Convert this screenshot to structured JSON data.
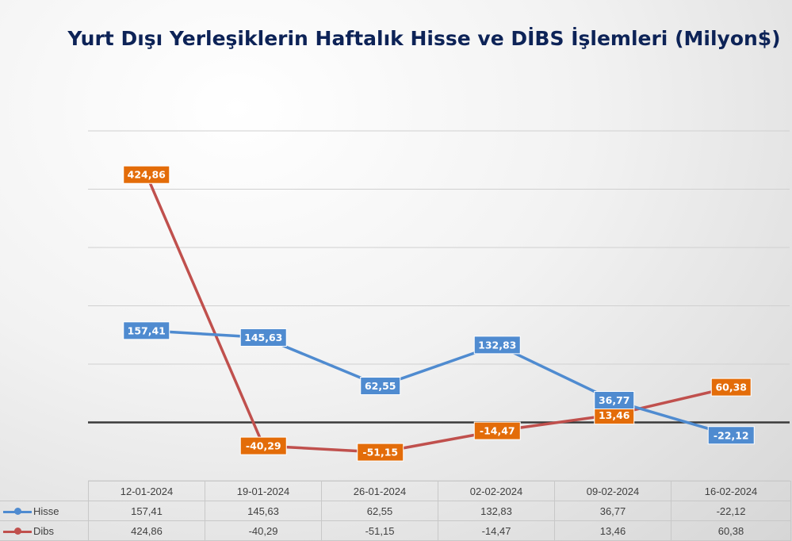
{
  "title": "Yurt Dışı Yerleşiklerin Haftalık Hisse ve DİBS İşlemleri (Milyon$)",
  "chart_data": {
    "type": "line",
    "title": "Yurt Dışı Yerleşiklerin Haftalık Hisse ve DİBS İşlemleri (Milyon$)",
    "categories": [
      "12-01-2024",
      "19-01-2024",
      "26-01-2024",
      "02-02-2024",
      "09-02-2024",
      "16-02-2024"
    ],
    "ylim": [
      -100,
      500
    ],
    "grid": true,
    "legend": "data-table",
    "series": [
      {
        "name": "Hisse",
        "color": "#4f8bd0",
        "values": [
          157.41,
          145.63,
          62.55,
          132.83,
          36.77,
          -22.12
        ],
        "labels": [
          "157,41",
          "145,63",
          "62,55",
          "132,83",
          "36,77",
          "-22,12"
        ]
      },
      {
        "name": "Dibs",
        "color": "#c0504d",
        "label_color": "#e36c09",
        "values": [
          424.86,
          -40.29,
          -51.15,
          -14.47,
          13.46,
          60.38
        ],
        "labels": [
          "424,86",
          "-40,29",
          "-51,15",
          "-14,47",
          "13,46",
          "60,38"
        ]
      }
    ]
  }
}
